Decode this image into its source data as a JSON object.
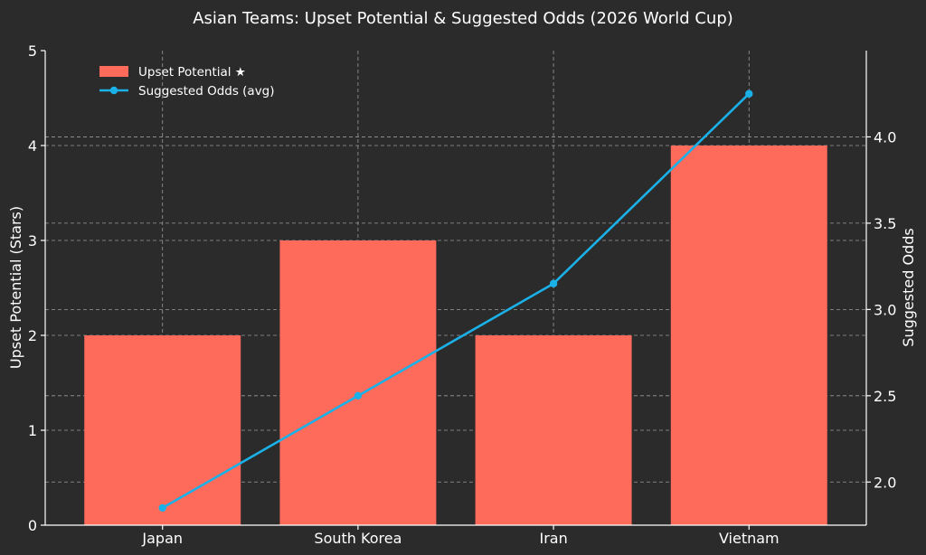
{
  "chart_data": {
    "type": "bar",
    "title": "Asian Teams: Upset Potential & Suggested Odds (2026 World Cup)",
    "categories": [
      "Japan",
      "South Korea",
      "Iran",
      "Vietnam"
    ],
    "series": [
      {
        "name": "Upset Potential ★",
        "type": "bar",
        "axis": "left",
        "color": "#ff6b5b",
        "values": [
          2,
          3,
          2,
          4
        ]
      },
      {
        "name": "Suggested Odds (avg)",
        "type": "line",
        "axis": "right",
        "color": "#1ab0e8",
        "values": [
          1.85,
          2.5,
          3.15,
          4.25
        ]
      }
    ],
    "ylabel": "Upset Potential (Stars)",
    "ylabel_right": "Suggested Odds",
    "ylim": [
      0,
      5
    ],
    "ylim_right": [
      1.75,
      4.5
    ],
    "yticks": [
      "0",
      "1",
      "2",
      "3",
      "4",
      "5"
    ],
    "yticks_right": [
      "2.0",
      "2.5",
      "3.0",
      "3.5",
      "4.0"
    ],
    "grid": true,
    "legend_position": "top-left"
  }
}
